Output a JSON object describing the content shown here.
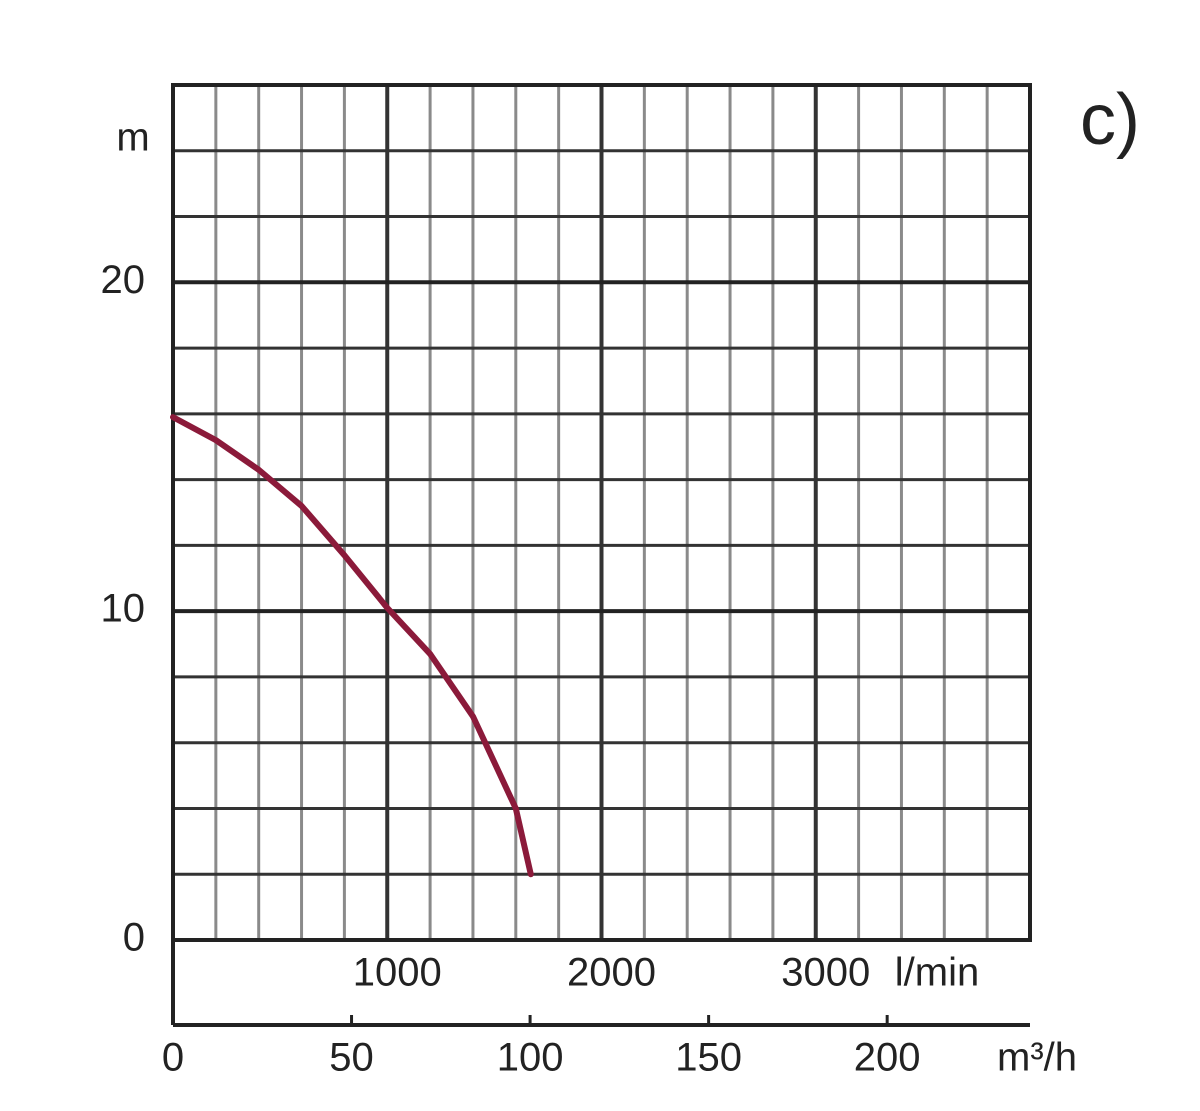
{
  "chart_data": {
    "type": "line",
    "annotation": "c)",
    "y_label": "m",
    "x_label": "l/min",
    "x2_label": "m³/h",
    "x": [
      0,
      200,
      400,
      600,
      800,
      1000,
      1200,
      1400,
      1600,
      1670
    ],
    "series": [
      {
        "color": "#8b1a3a",
        "values": [
          15.9,
          15.2,
          14.3,
          13.2,
          11.7,
          10.1,
          8.7,
          6.8,
          4.0,
          2.0
        ]
      }
    ],
    "xlim": [
      0,
      4000
    ],
    "xticks": [
      1000,
      2000,
      3000
    ],
    "x2lim": [
      0,
      240
    ],
    "x2ticks": [
      0,
      50,
      100,
      150,
      200
    ],
    "ylim": [
      0,
      26
    ],
    "yticks": [
      0,
      10,
      20
    ],
    "minor_grid": {
      "x": 200,
      "y": 2
    },
    "grid": true
  }
}
